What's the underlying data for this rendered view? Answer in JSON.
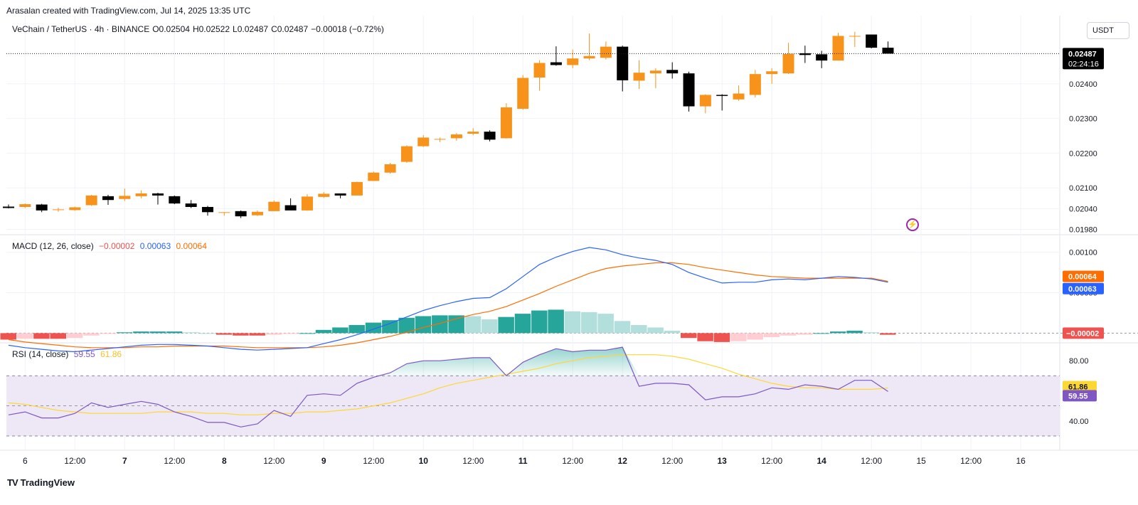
{
  "attribution": "Arasalan created with TradingView.com, Jul 14, 2025 13:35 UTC",
  "header": {
    "symbol": "VeChain / TetherUS · 4h · BINANCE",
    "open_label": "O",
    "open": "0.02504",
    "high_label": "H",
    "high": "0.02522",
    "low_label": "L",
    "low": "0.02487",
    "close_label": "C",
    "close": "0.02487",
    "change": "−0.00018 (−0.72%)"
  },
  "currency_button": "USDT",
  "macd_header": {
    "title": "MACD (12, 26, close)",
    "hist": "−0.00002",
    "macd": "0.00063",
    "signal": "0.00064"
  },
  "rsi_header": {
    "title": "RSI (14, close)",
    "rsi": "59.55",
    "ma": "61.86"
  },
  "footer": {
    "logo": "TV",
    "brand": "TradingView"
  },
  "colors": {
    "up": "#f7931a",
    "down": "#000000",
    "grid": "#f0f3fa",
    "macd": "#2962ff",
    "signal": "#ff6d00",
    "hist_pos_strong": "#26a69a",
    "hist_pos_weak": "#b2dfdb",
    "hist_neg_strong": "#ef5350",
    "hist_neg_weak": "#ffcdd2",
    "rsi": "#7e57c2",
    "rsi_ma": "#fdd835",
    "rsi_band": "#ede7f6"
  },
  "chart_data": [
    {
      "type": "candlestick",
      "title": "VeChain / TetherUS · 4h · BINANCE",
      "ylim": [
        0.01965,
        0.0258
      ],
      "y_ticks": [
        "0.01980",
        "0.02040",
        "0.02100",
        "0.02200",
        "0.02300",
        "0.02400"
      ],
      "x_ticks": [
        "6",
        "12:00",
        "7",
        "12:00",
        "8",
        "12:00",
        "9",
        "12:00",
        "10",
        "12:00",
        "11",
        "12:00",
        "12",
        "12:00",
        "13",
        "12:00",
        "14",
        "12:00",
        "15",
        "12:00",
        "16"
      ],
      "x_ticks_bold": [
        "7",
        "8",
        "9",
        "10",
        "11",
        "12",
        "13",
        "14"
      ],
      "last_price": "0.02487",
      "countdown": "02:24:16",
      "candles": [
        [
          0.02046,
          0.02052,
          0.02041,
          0.02042
        ],
        [
          0.02045,
          0.02055,
          0.02042,
          0.02053
        ],
        [
          0.02052,
          0.02054,
          0.0203,
          0.02035
        ],
        [
          0.02037,
          0.02043,
          0.02031,
          0.02038
        ],
        [
          0.02036,
          0.02046,
          0.02034,
          0.02044
        ],
        [
          0.0205,
          0.0208,
          0.02048,
          0.02078
        ],
        [
          0.02076,
          0.0208,
          0.02051,
          0.02065
        ],
        [
          0.02068,
          0.02098,
          0.02062,
          0.02077
        ],
        [
          0.02076,
          0.02093,
          0.0207,
          0.02084
        ],
        [
          0.02084,
          0.02086,
          0.02052,
          0.02078
        ],
        [
          0.02076,
          0.02078,
          0.02053,
          0.02055
        ],
        [
          0.02055,
          0.02065,
          0.02042,
          0.02045
        ],
        [
          0.02045,
          0.02048,
          0.0202,
          0.0203
        ],
        [
          0.0203,
          0.0203,
          0.0202,
          0.0203
        ],
        [
          0.02033,
          0.02035,
          0.02013,
          0.02018
        ],
        [
          0.02021,
          0.02035,
          0.02019,
          0.02031
        ],
        [
          0.02033,
          0.02064,
          0.02033,
          0.0206
        ],
        [
          0.0205,
          0.0207,
          0.0204,
          0.02035
        ],
        [
          0.02035,
          0.02082,
          0.02034,
          0.02075
        ],
        [
          0.02074,
          0.02088,
          0.02071,
          0.02083
        ],
        [
          0.02084,
          0.02084,
          0.0207,
          0.02078
        ],
        [
          0.02078,
          0.02118,
          0.02078,
          0.02117
        ],
        [
          0.0212,
          0.02147,
          0.0212,
          0.02144
        ],
        [
          0.02144,
          0.02172,
          0.02141,
          0.02168
        ],
        [
          0.02175,
          0.02223,
          0.02172,
          0.0222
        ],
        [
          0.0222,
          0.02252,
          0.02218,
          0.02245
        ],
        [
          0.02241,
          0.02245,
          0.02232,
          0.02241
        ],
        [
          0.02243,
          0.02258,
          0.02236,
          0.02254
        ],
        [
          0.02256,
          0.02272,
          0.02252,
          0.02262
        ],
        [
          0.02262,
          0.02266,
          0.02234,
          0.02239
        ],
        [
          0.02243,
          0.02344,
          0.02242,
          0.02332
        ],
        [
          0.02328,
          0.02425,
          0.02325,
          0.02417
        ],
        [
          0.02418,
          0.02468,
          0.0238,
          0.0246
        ],
        [
          0.02462,
          0.02508,
          0.02452,
          0.02454
        ],
        [
          0.02454,
          0.02499,
          0.02445,
          0.02473
        ],
        [
          0.02473,
          0.02545,
          0.02468,
          0.0248
        ],
        [
          0.02475,
          0.02522,
          0.0247,
          0.02507
        ],
        [
          0.02507,
          0.0251,
          0.02378,
          0.0241
        ],
        [
          0.02409,
          0.02468,
          0.02385,
          0.02432
        ],
        [
          0.0243,
          0.02445,
          0.02387,
          0.02438
        ],
        [
          0.0244,
          0.02462,
          0.02415,
          0.0243
        ],
        [
          0.0243,
          0.02435,
          0.0232,
          0.02335
        ],
        [
          0.02335,
          0.0237,
          0.02315,
          0.02368
        ],
        [
          0.02368,
          0.0237,
          0.02323,
          0.02365
        ],
        [
          0.02355,
          0.02395,
          0.02351,
          0.02372
        ],
        [
          0.02368,
          0.0244,
          0.02361,
          0.02428
        ],
        [
          0.02428,
          0.02445,
          0.024,
          0.02436
        ],
        [
          0.0243,
          0.02518,
          0.02428,
          0.02486
        ],
        [
          0.02488,
          0.0251,
          0.0246,
          0.02483
        ],
        [
          0.02485,
          0.02495,
          0.02445,
          0.02467
        ],
        [
          0.02467,
          0.02547,
          0.02467,
          0.02538
        ],
        [
          0.02538,
          0.0255,
          0.02506,
          0.02538
        ],
        [
          0.02542,
          0.02542,
          0.02502,
          0.02504
        ],
        [
          0.02504,
          0.02522,
          0.02487,
          0.02487
        ]
      ]
    },
    {
      "type": "macd",
      "title": "MACD (12, 26, close)",
      "ylim": [
        -0.00012,
        0.0012
      ],
      "y_ticks": [
        "0.00050",
        "0.00100"
      ],
      "macd": [
        -0.00015,
        -0.00018,
        -0.0002,
        -0.00022,
        -0.00023,
        -0.00021,
        -0.00019,
        -0.00017,
        -0.00015,
        -0.00014,
        -0.00014,
        -0.00015,
        -0.00016,
        -0.00018,
        -0.0002,
        -0.00021,
        -0.0002,
        -0.00019,
        -0.00018,
        -0.00013,
        -8e-05,
        -2e-05,
        5e-05,
        0.00012,
        0.0002,
        0.00028,
        0.00034,
        0.00039,
        0.00043,
        0.00044,
        0.00055,
        0.0007,
        0.00085,
        0.00094,
        0.00101,
        0.00106,
        0.00103,
        0.00097,
        0.00093,
        0.0009,
        0.00085,
        0.00075,
        0.00068,
        0.00062,
        0.00063,
        0.00063,
        0.00066,
        0.00067,
        0.00066,
        0.00068,
        0.0007,
        0.00069,
        0.00067,
        0.00063
      ],
      "signal": [
        -8e-05,
        -0.00011,
        -0.00013,
        -0.00015,
        -0.00017,
        -0.00018,
        -0.00018,
        -0.00018,
        -0.00017,
        -0.00017,
        -0.00016,
        -0.00016,
        -0.00016,
        -0.00016,
        -0.00017,
        -0.00018,
        -0.00018,
        -0.00018,
        -0.00018,
        -0.00017,
        -0.00015,
        -0.00012,
        -8e-05,
        -4e-05,
        1e-05,
        7e-05,
        0.00012,
        0.00018,
        0.00023,
        0.00027,
        0.00033,
        0.00041,
        0.00049,
        0.00058,
        0.00066,
        0.00074,
        0.0008,
        0.00083,
        0.00085,
        0.00087,
        0.00087,
        0.00085,
        0.00081,
        0.00078,
        0.00075,
        0.00072,
        0.0007,
        0.00069,
        0.00068,
        0.00068,
        0.00068,
        0.00068,
        0.00068,
        0.00064
      ],
      "histogram": [
        -8e-05,
        -7e-05,
        -7e-05,
        -7e-05,
        -6e-05,
        -3e-05,
        -1e-05,
        1e-05,
        2e-05,
        2e-05,
        2e-05,
        1e-05,
        0.0,
        -2e-05,
        -3e-05,
        -3e-05,
        -2e-05,
        -1e-05,
        0.0,
        4e-05,
        7e-05,
        0.0001,
        0.00013,
        0.00016,
        0.00019,
        0.00021,
        0.00022,
        0.00022,
        0.00021,
        0.00017,
        0.0002,
        0.00024,
        0.00028,
        0.00029,
        0.00027,
        0.00026,
        0.00024,
        0.00015,
        0.0001,
        7e-05,
        3e-05,
        -6e-05,
        -0.0001,
        -0.00011,
        -0.0001,
        -8e-05,
        -5e-05,
        -3e-05,
        -2e-05,
        0.0,
        2e-05,
        3e-05,
        1e-05,
        -2e-05
      ]
    },
    {
      "type": "rsi",
      "title": "RSI (14, close)",
      "ylim": [
        21,
        90
      ],
      "bands": [
        30,
        50,
        70
      ],
      "y_ticks": [
        "40.00",
        "80.00"
      ],
      "rsi": [
        44,
        46,
        42,
        42,
        45,
        52,
        49,
        51,
        53,
        51,
        46,
        43,
        39,
        39,
        36,
        38,
        47,
        43,
        57,
        58,
        57,
        65,
        69,
        72,
        78,
        80,
        80,
        81,
        82,
        82,
        70,
        79,
        84,
        88,
        86,
        87,
        87,
        89,
        63,
        65,
        65,
        64,
        54,
        56,
        56,
        58,
        62,
        61,
        64,
        63,
        61,
        67,
        67,
        59.55
      ],
      "rsi_ma": [
        52,
        51,
        49,
        47,
        46,
        45,
        45,
        45,
        45,
        46,
        46,
        46,
        45,
        45,
        44,
        44,
        45,
        45,
        46,
        46,
        47,
        48,
        50,
        52,
        55,
        58,
        62,
        65,
        67,
        69,
        71,
        73,
        75,
        78,
        80,
        82,
        83,
        84,
        84,
        84,
        83,
        81,
        78,
        75,
        71,
        68,
        65,
        63,
        62,
        62,
        61,
        61,
        61,
        61.86
      ]
    }
  ]
}
